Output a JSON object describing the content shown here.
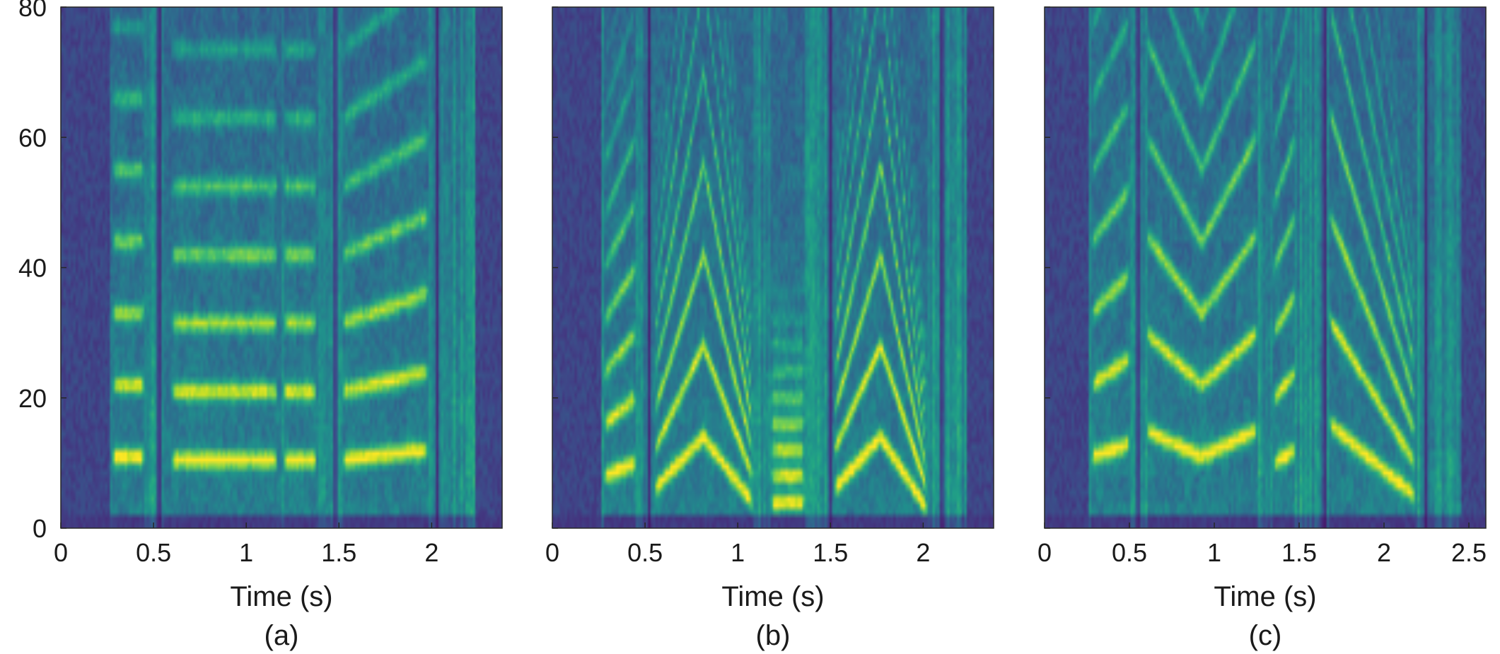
{
  "chart_data": [
    {
      "type": "heatmap",
      "caption": "(a)",
      "xlabel": "Time (s)",
      "ylabel": "",
      "xlim": [
        0,
        2.38
      ],
      "ylim": [
        0,
        80
      ],
      "xticks": [
        0,
        0.5,
        1,
        1.5,
        2
      ],
      "xtick_labels": [
        "0",
        "0.5",
        "1",
        "1.5",
        "2"
      ],
      "yticks": [
        0,
        20,
        40,
        60,
        80
      ],
      "ytick_labels": [
        "0",
        "20",
        "40",
        "60",
        "80"
      ],
      "colormap": "viridis",
      "grid": false,
      "segments": [
        {
          "t0": 0.28,
          "t1": 0.45,
          "f0": [
            11,
            11
          ]
        },
        {
          "t0": 0.6,
          "t1": 1.17,
          "f0": [
            10.5,
            10.5
          ]
        },
        {
          "t0": 1.2,
          "t1": 1.38,
          "f0": [
            10.5,
            10.5
          ]
        },
        {
          "t0": 1.52,
          "t1": 1.98,
          "f0": [
            10.5,
            12
          ]
        }
      ],
      "silences": [
        0.53,
        1.48,
        2.03
      ]
    },
    {
      "type": "heatmap",
      "caption": "(b)",
      "xlabel": "Time (s)",
      "ylabel": "",
      "xlim": [
        0,
        2.38
      ],
      "ylim": [
        0,
        80
      ],
      "xticks": [
        0,
        0.5,
        1,
        1.5,
        2
      ],
      "xtick_labels": [
        "0",
        "0.5",
        "1",
        "1.5",
        "2"
      ],
      "yticks": [
        0,
        20,
        40,
        60,
        80
      ],
      "ytick_labels": [
        "0",
        "20",
        "40",
        "60",
        "80"
      ],
      "colormap": "viridis",
      "grid": false,
      "segments": [
        {
          "t0": 0.28,
          "t1": 0.45,
          "f0": [
            8,
            10
          ]
        },
        {
          "t0": 0.55,
          "t1": 1.08,
          "f0": [
            6,
            14,
            4
          ]
        },
        {
          "t0": 1.18,
          "t1": 1.36,
          "f0": [
            4,
            4
          ]
        },
        {
          "t0": 1.52,
          "t1": 2.02,
          "f0": [
            6,
            14,
            3
          ]
        }
      ],
      "silences": [
        0.52,
        1.5,
        2.1
      ]
    },
    {
      "type": "heatmap",
      "caption": "(c)",
      "xlabel": "Time (s)",
      "ylabel": "",
      "xlim": [
        0,
        2.6
      ],
      "ylim": [
        0,
        80
      ],
      "xticks": [
        0,
        0.5,
        1,
        1.5,
        2,
        2.5
      ],
      "xtick_labels": [
        "0",
        "0.5",
        "1",
        "1.5",
        "2",
        "2.5"
      ],
      "yticks": [
        0,
        20,
        40,
        60,
        80
      ],
      "ytick_labels": [
        "0",
        "20",
        "40",
        "60",
        "80"
      ],
      "colormap": "viridis",
      "grid": false,
      "segments": [
        {
          "t0": 0.28,
          "t1": 0.5,
          "f0": [
            11,
            13
          ]
        },
        {
          "t0": 0.6,
          "t1": 1.25,
          "f0": [
            15,
            11,
            15
          ]
        },
        {
          "t0": 1.35,
          "t1": 1.48,
          "f0": [
            10,
            12
          ]
        },
        {
          "t0": 1.68,
          "t1": 2.18,
          "f0": [
            16,
            5
          ]
        }
      ],
      "silences": [
        0.55,
        1.65,
        2.25
      ]
    }
  ]
}
